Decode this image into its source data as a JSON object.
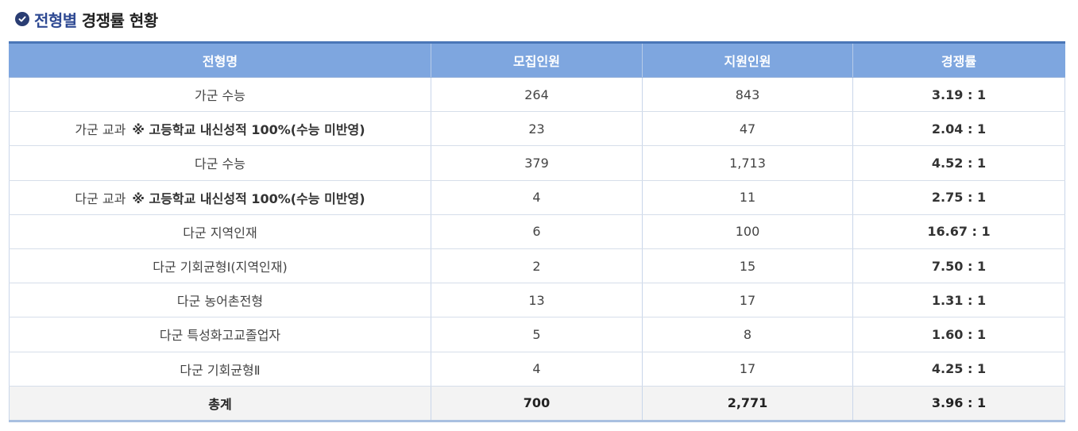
{
  "section": {
    "title_accent": "전형별",
    "title_rest": "경쟁률 현황"
  },
  "table": {
    "headers": [
      "전형명",
      "모집인원",
      "지원인원",
      "경쟁률"
    ],
    "rows": [
      {
        "name": "가군 수능",
        "note": "",
        "recruit": "264",
        "applicants": "843",
        "rate": "3.19 : 1"
      },
      {
        "name": "가군 교과",
        "note": "※ 고등학교 내신성적 100%(수능 미반영)",
        "recruit": "23",
        "applicants": "47",
        "rate": "2.04 : 1"
      },
      {
        "name": "다군 수능",
        "note": "",
        "recruit": "379",
        "applicants": "1,713",
        "rate": "4.52 : 1"
      },
      {
        "name": "다군 교과",
        "note": "※ 고등학교 내신성적 100%(수능 미반영)",
        "recruit": "4",
        "applicants": "11",
        "rate": "2.75 : 1"
      },
      {
        "name": "다군 지역인재",
        "note": "",
        "recruit": "6",
        "applicants": "100",
        "rate": "16.67 : 1"
      },
      {
        "name": "다군 기회균형Ⅰ(지역인재)",
        "note": "",
        "recruit": "2",
        "applicants": "15",
        "rate": "7.50 : 1"
      },
      {
        "name": "다군 농어촌전형",
        "note": "",
        "recruit": "13",
        "applicants": "17",
        "rate": "1.31 : 1"
      },
      {
        "name": "다군 특성화고교졸업자",
        "note": "",
        "recruit": "5",
        "applicants": "8",
        "rate": "1.60 : 1"
      },
      {
        "name": "다군 기회균형Ⅱ",
        "note": "",
        "recruit": "4",
        "applicants": "17",
        "rate": "4.25 : 1"
      }
    ],
    "total": {
      "name": "총계",
      "recruit": "700",
      "applicants": "2,771",
      "rate": "3.96 : 1"
    }
  },
  "colors": {
    "header_bg": "#7ea6df",
    "accent": "#2f4a93",
    "total_bg": "#f3f3f3"
  },
  "icons": {
    "heading": "check-circle-icon"
  }
}
